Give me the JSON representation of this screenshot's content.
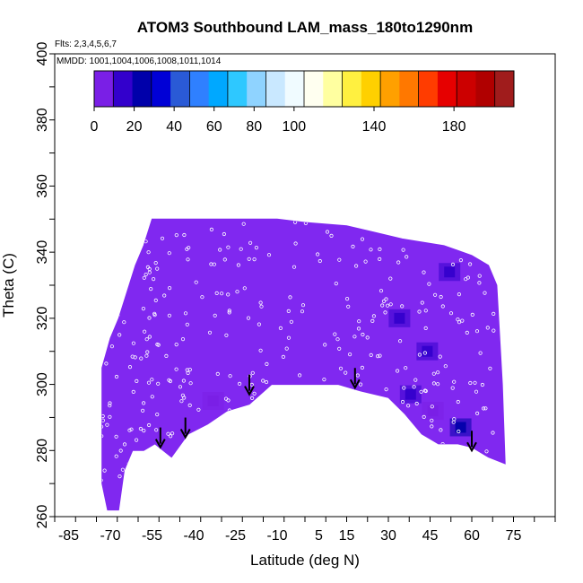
{
  "chart_data": {
    "type": "heatmap",
    "title": "ATOM3 Southbound LAM_mass_180to1290nm",
    "flights_note": "Flts: 2,3,4,5,6,7",
    "dates_note": "MMDD: 1001,1004,1006,1008,1011,1014",
    "xlabel": "Latitude (deg N)",
    "ylabel": "Theta (C)",
    "xlim": [
      -90,
      90
    ],
    "ylim": [
      260,
      400
    ],
    "x_tick_labels": [
      "-85",
      "-70",
      "-55",
      "-40",
      "-25",
      "-10",
      "5",
      "15",
      "30",
      "45",
      "60",
      "75"
    ],
    "y_tick_labels": [
      "260",
      "280",
      "300",
      "320",
      "340",
      "360",
      "380",
      "400"
    ],
    "colorbar": {
      "range": [
        0,
        210
      ],
      "tick_labels": [
        "0",
        "20",
        "40",
        "60",
        "80",
        "100",
        "140",
        "180"
      ],
      "colors": [
        "#7a1fe6",
        "#3300cc",
        "#0000aa",
        "#0000d6",
        "#2a5ad6",
        "#2f80ff",
        "#00a8ff",
        "#2ec8ff",
        "#8fd3ff",
        "#c9e8ff",
        "#f0fbff",
        "#fffff0",
        "#ffffa0",
        "#fff040",
        "#ffd000",
        "#ffa000",
        "#ff7800",
        "#ff3c00",
        "#e60000",
        "#cc0000",
        "#b00000",
        "#a01c1c"
      ]
    },
    "background_color": "#8028f0",
    "envelope_top": [
      [
        -73,
        305
      ],
      [
        -70,
        314
      ],
      [
        -67,
        320
      ],
      [
        -64,
        328
      ],
      [
        -61,
        336
      ],
      [
        -58,
        342
      ],
      [
        -55,
        350
      ],
      [
        -50,
        350
      ],
      [
        -45,
        350
      ],
      [
        -35,
        350
      ],
      [
        -20,
        350
      ],
      [
        -10,
        350
      ],
      [
        0,
        349
      ],
      [
        15,
        348
      ],
      [
        25,
        346
      ],
      [
        35,
        344
      ],
      [
        50,
        342
      ],
      [
        60,
        339
      ],
      [
        66,
        336
      ],
      [
        69,
        330
      ],
      [
        70,
        315
      ],
      [
        71,
        300
      ],
      [
        72,
        276
      ]
    ],
    "envelope_bottom": [
      [
        72,
        276
      ],
      [
        66,
        278
      ],
      [
        60,
        281
      ],
      [
        55,
        282
      ],
      [
        48,
        282
      ],
      [
        42,
        285
      ],
      [
        36,
        291
      ],
      [
        30,
        296
      ],
      [
        20,
        298
      ],
      [
        12,
        300
      ],
      [
        -5,
        300
      ],
      [
        -12,
        300
      ],
      [
        -20,
        294
      ],
      [
        -28,
        292
      ],
      [
        -35,
        288
      ],
      [
        -42,
        285
      ],
      [
        -48,
        278
      ],
      [
        -54,
        282
      ],
      [
        -58,
        280
      ],
      [
        -62,
        280
      ],
      [
        -65,
        274
      ],
      [
        -67,
        262
      ],
      [
        -71,
        262
      ],
      [
        -73,
        270
      ]
    ],
    "enhanced_regions": [
      {
        "lat": 34,
        "theta": 320,
        "value": 18
      },
      {
        "lat": 44,
        "theta": 310,
        "value": 14
      },
      {
        "lat": 38,
        "theta": 297,
        "value": 12
      },
      {
        "lat": 52,
        "theta": 334,
        "value": 10
      },
      {
        "lat": 56,
        "theta": 287,
        "value": 22
      },
      {
        "lat": 46,
        "theta": 292,
        "value": 8
      },
      {
        "lat": -33,
        "theta": 295,
        "value": 6
      }
    ],
    "arrows": [
      {
        "lat": -52,
        "theta": 281
      },
      {
        "lat": -43,
        "theta": 284
      },
      {
        "lat": -20,
        "theta": 297
      },
      {
        "lat": 18,
        "theta": 299
      },
      {
        "lat": 60,
        "theta": 280
      }
    ]
  }
}
